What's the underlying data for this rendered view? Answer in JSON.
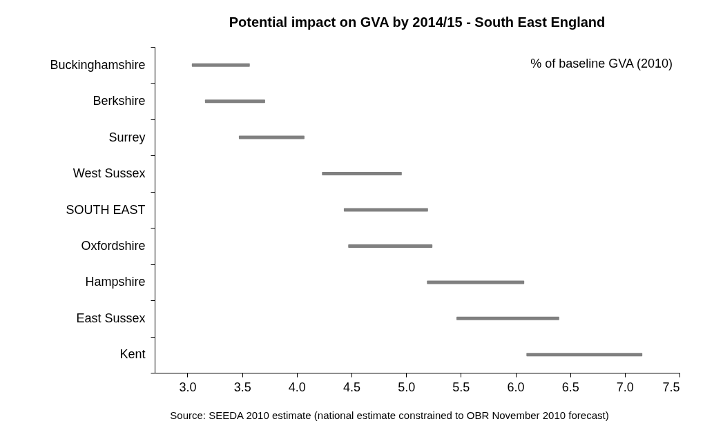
{
  "chart_data": {
    "type": "bar",
    "orientation": "horizontal",
    "title": "Potential impact on GVA by 2014/15 - South East England",
    "categories": [
      "Buckinghamshire",
      "Berkshire",
      "Surrey",
      "West Sussex",
      "SOUTH EAST",
      "Oxfordshire",
      "Hampshire",
      "East Sussex",
      "Kent"
    ],
    "base": [
      3.04,
      3.16,
      3.47,
      4.23,
      4.43,
      4.47,
      5.19,
      5.46,
      6.1
    ],
    "values": [
      0.53,
      0.55,
      0.6,
      0.73,
      0.77,
      0.77,
      0.89,
      0.94,
      1.06
    ],
    "color": "#808080",
    "xlim": [
      2.7,
      7.5
    ],
    "xticks": [
      {
        "value": 3,
        "label": "3.0"
      },
      3.5,
      {
        "value": 4,
        "label": "4.0"
      },
      4.5,
      {
        "value": 5,
        "label": "5.0"
      },
      5.5,
      {
        "value": 6,
        "label": "6.0"
      },
      6.5,
      {
        "value": 7,
        "label": "7.0"
      },
      7.5
    ],
    "annotations": [
      "% of baseline GVA (2010)",
      "Source: SEEDA 2010 estimate (national estimate constrained to OBR November 2010 forecast)"
    ]
  }
}
